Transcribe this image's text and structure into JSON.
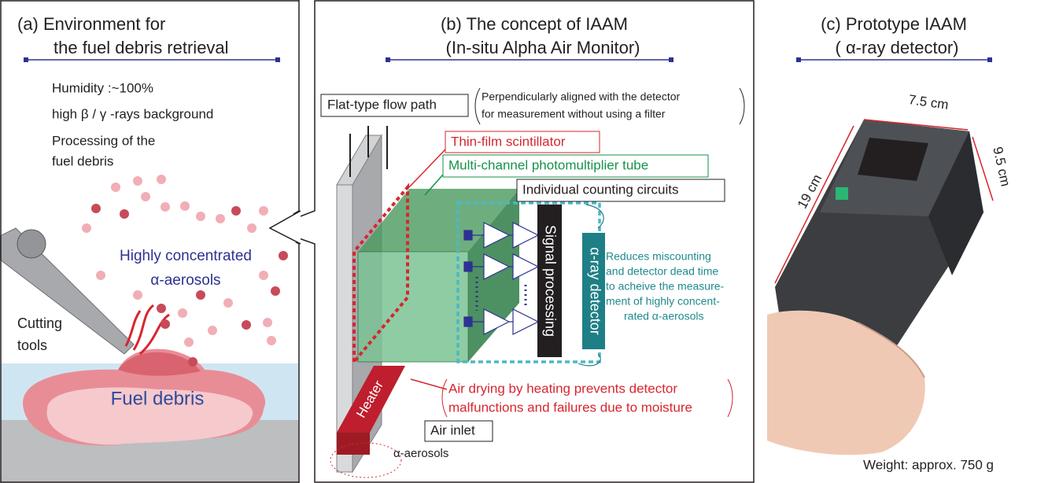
{
  "panel_a": {
    "title": [
      "(a) Environment for",
      "the fuel debris retrieval"
    ],
    "conditions": [
      "Humidity :~100%",
      "high β / γ -rays background",
      "Processing of the",
      "fuel debris"
    ],
    "aerosol_label": [
      "Highly concentrated",
      "α-aerosols"
    ],
    "tool_label": [
      "Cutting",
      "tools"
    ],
    "debris_label": "Fuel debris"
  },
  "panel_b": {
    "title": [
      "(b) The concept of IAAM",
      "(In-situ Alpha Air Monitor)"
    ],
    "flow_path": "Flat-type flow path",
    "flow_note": [
      "Perpendicularly aligned with the detector",
      "for measurement without using a filter"
    ],
    "scintillator": "Thin-film scintillator",
    "photomultiplier": "Multi-channel photomultiplier tube",
    "circuits": "Individual counting circuits",
    "signal_processing": "Signal processing",
    "detector": "α-ray detector",
    "detector_note": [
      "Reduces miscounting",
      "and detector dead time",
      "to acheive the measure-",
      "ment of highly concent-",
      "rated α-aerosols"
    ],
    "heater": "Heater",
    "heater_note": [
      "Air drying by heating prevents detector",
      "malfunctions and failures due to moisture"
    ],
    "air_inlet": "Air inlet",
    "inlet_aerosols": "α-aerosols"
  },
  "panel_c": {
    "title": [
      "(c) Prototype IAAM",
      "( α-ray detector)"
    ],
    "width": "7.5 cm",
    "height": "9.5 cm",
    "length": "19 cm",
    "weight": "Weight: approx. 750 g"
  }
}
